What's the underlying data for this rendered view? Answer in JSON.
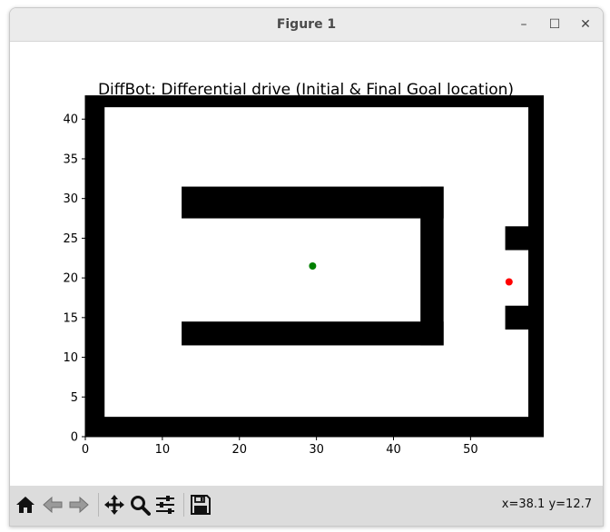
{
  "window": {
    "title": "Figure 1",
    "controls": {
      "minimize": "–",
      "maximize": "☐",
      "close": "✕"
    }
  },
  "toolbar": {
    "buttons": [
      "home-icon",
      "back-icon",
      "forward-icon",
      "pan-icon",
      "zoom-icon",
      "configure-subplots-icon",
      "save-icon"
    ],
    "coords": "x=38.1 y=12.7"
  },
  "chart_data": {
    "type": "scatter",
    "title": "DiffBot: Differential drive (Initial & Final Goal location)",
    "xlabel": "",
    "ylabel": "",
    "xlim": [
      0,
      59.5
    ],
    "ylim": [
      0,
      43
    ],
    "xticks": [
      0,
      10,
      20,
      30,
      40,
      50
    ],
    "yticks": [
      0,
      5,
      10,
      15,
      20,
      25,
      30,
      35,
      40
    ],
    "grid": false,
    "obstacles_color": "#000000",
    "obstacles": [
      {
        "x0": 0,
        "x1": 59.5,
        "y0": 41.5,
        "y1": 43
      },
      {
        "x0": 0,
        "x1": 59.5,
        "y0": 0,
        "y1": 2.5
      },
      {
        "x0": 0,
        "x1": 2.5,
        "y0": 0,
        "y1": 43
      },
      {
        "x0": 57.5,
        "x1": 59.5,
        "y0": 0,
        "y1": 43
      },
      {
        "x0": 12.5,
        "x1": 46.5,
        "y0": 27.5,
        "y1": 31.5
      },
      {
        "x0": 12.5,
        "x1": 46.5,
        "y0": 11.5,
        "y1": 14.5
      },
      {
        "x0": 43.5,
        "x1": 46.5,
        "y0": 11.5,
        "y1": 31.5
      },
      {
        "x0": 54.5,
        "x1": 59.5,
        "y0": 23.5,
        "y1": 26.5
      },
      {
        "x0": 54.5,
        "x1": 59.5,
        "y0": 13.5,
        "y1": 16.5
      }
    ],
    "points": [
      {
        "name": "initial",
        "x": 29.5,
        "y": 21.5,
        "color": "#008000"
      },
      {
        "name": "goal",
        "x": 55.0,
        "y": 19.5,
        "color": "#ff0000"
      }
    ]
  }
}
